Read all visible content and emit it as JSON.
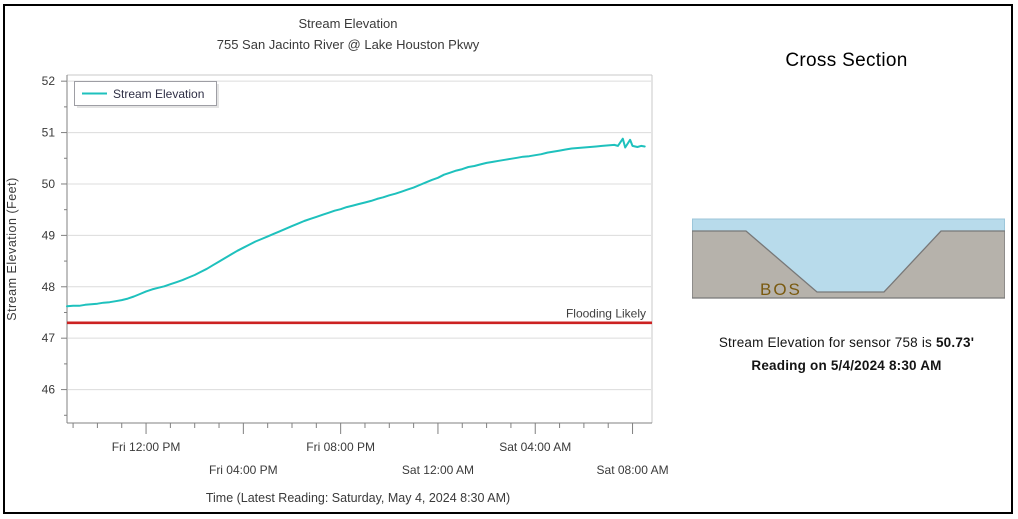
{
  "chart_data": {
    "type": "line",
    "title": "Stream Elevation",
    "subtitle": "755 San Jacinto River @ Lake Houston Pkwy",
    "xlabel": "Time (Latest Reading: Saturday, May 4, 2024 8:30 AM)",
    "ylabel": "Stream Elevation (Feet)",
    "ylim": [
      45.35,
      52.12
    ],
    "x_domain_hours": [
      8.75,
      32.8
    ],
    "y_major_ticks": [
      46,
      47,
      48,
      49,
      50,
      51,
      52
    ],
    "y_minor_step": 0.5,
    "x_minor_step_hours": 1,
    "x_major_ticks": [
      {
        "hour": 12,
        "label": "Fri 12:00 PM",
        "row": 1
      },
      {
        "hour": 16,
        "label": "Fri 04:00 PM",
        "row": 2
      },
      {
        "hour": 20,
        "label": "Fri 08:00 PM",
        "row": 1
      },
      {
        "hour": 24,
        "label": "Sat 12:00 AM",
        "row": 2
      },
      {
        "hour": 28,
        "label": "Sat 04:00 AM",
        "row": 1
      },
      {
        "hour": 32,
        "label": "Sat 08:00 AM",
        "row": 2
      }
    ],
    "grid": "horizontal",
    "legend": {
      "position": "top-left",
      "entries": [
        {
          "label": "Stream Elevation",
          "color": "#1ec1bd"
        }
      ]
    },
    "threshold": {
      "value": 47.3,
      "label": "Flooding Likely",
      "color": "#cc2222"
    },
    "series": [
      {
        "name": "Stream Elevation",
        "color": "#1ec1bd",
        "points": [
          [
            8.75,
            47.62
          ],
          [
            9.0,
            47.63
          ],
          [
            9.25,
            47.63
          ],
          [
            9.5,
            47.65
          ],
          [
            9.75,
            47.66
          ],
          [
            10.0,
            47.67
          ],
          [
            10.25,
            47.69
          ],
          [
            10.5,
            47.7
          ],
          [
            10.75,
            47.72
          ],
          [
            11.0,
            47.74
          ],
          [
            11.25,
            47.77
          ],
          [
            11.5,
            47.81
          ],
          [
            11.75,
            47.86
          ],
          [
            12.0,
            47.91
          ],
          [
            12.25,
            47.95
          ],
          [
            12.5,
            47.98
          ],
          [
            12.75,
            48.01
          ],
          [
            13.0,
            48.05
          ],
          [
            13.25,
            48.09
          ],
          [
            13.5,
            48.13
          ],
          [
            13.75,
            48.18
          ],
          [
            14.0,
            48.23
          ],
          [
            14.25,
            48.29
          ],
          [
            14.5,
            48.35
          ],
          [
            14.75,
            48.42
          ],
          [
            15.0,
            48.49
          ],
          [
            15.25,
            48.56
          ],
          [
            15.5,
            48.63
          ],
          [
            15.75,
            48.7
          ],
          [
            16.0,
            48.76
          ],
          [
            16.25,
            48.82
          ],
          [
            16.5,
            48.88
          ],
          [
            16.75,
            48.93
          ],
          [
            17.0,
            48.98
          ],
          [
            17.25,
            49.03
          ],
          [
            17.5,
            49.08
          ],
          [
            17.75,
            49.13
          ],
          [
            18.0,
            49.18
          ],
          [
            18.25,
            49.23
          ],
          [
            18.5,
            49.28
          ],
          [
            18.75,
            49.32
          ],
          [
            19.0,
            49.36
          ],
          [
            19.25,
            49.4
          ],
          [
            19.5,
            49.44
          ],
          [
            19.75,
            49.48
          ],
          [
            20.0,
            49.51
          ],
          [
            20.25,
            49.55
          ],
          [
            20.5,
            49.58
          ],
          [
            20.75,
            49.61
          ],
          [
            21.0,
            49.64
          ],
          [
            21.25,
            49.67
          ],
          [
            21.5,
            49.71
          ],
          [
            21.75,
            49.74
          ],
          [
            22.0,
            49.78
          ],
          [
            22.25,
            49.81
          ],
          [
            22.5,
            49.85
          ],
          [
            22.75,
            49.89
          ],
          [
            23.0,
            49.93
          ],
          [
            23.25,
            49.98
          ],
          [
            23.5,
            50.03
          ],
          [
            23.75,
            50.08
          ],
          [
            24.0,
            50.12
          ],
          [
            24.25,
            50.18
          ],
          [
            24.5,
            50.22
          ],
          [
            24.75,
            50.26
          ],
          [
            25.0,
            50.29
          ],
          [
            25.25,
            50.33
          ],
          [
            25.5,
            50.35
          ],
          [
            25.75,
            50.38
          ],
          [
            26.0,
            50.41
          ],
          [
            26.25,
            50.43
          ],
          [
            26.5,
            50.45
          ],
          [
            26.75,
            50.47
          ],
          [
            27.0,
            50.49
          ],
          [
            27.25,
            50.51
          ],
          [
            27.5,
            50.53
          ],
          [
            27.75,
            50.54
          ],
          [
            28.0,
            50.56
          ],
          [
            28.25,
            50.58
          ],
          [
            28.5,
            50.61
          ],
          [
            28.75,
            50.63
          ],
          [
            29.0,
            50.65
          ],
          [
            29.25,
            50.67
          ],
          [
            29.5,
            50.69
          ],
          [
            29.75,
            50.7
          ],
          [
            30.0,
            50.71
          ],
          [
            30.25,
            50.72
          ],
          [
            30.5,
            50.73
          ],
          [
            30.75,
            50.74
          ],
          [
            31.0,
            50.75
          ],
          [
            31.25,
            50.76
          ],
          [
            31.4,
            50.74
          ],
          [
            31.6,
            50.88
          ],
          [
            31.7,
            50.71
          ],
          [
            31.9,
            50.86
          ],
          [
            32.0,
            50.74
          ],
          [
            32.2,
            50.72
          ],
          [
            32.35,
            50.74
          ],
          [
            32.5,
            50.73
          ]
        ]
      }
    ]
  },
  "right": {
    "title": "Cross Section",
    "bos_label": "BOS",
    "reading": {
      "prefix": "Stream Elevation for sensor 758 is ",
      "value": "50.73'",
      "line2": "Reading on 5/4/2024 8:30 AM"
    }
  },
  "colors": {
    "series_teal": "#1ec1bd",
    "threshold_red": "#cc2222",
    "water_blue": "#b8dbeb",
    "ground_gray": "#b6b2ab",
    "ground_outline": "#787878",
    "bos_brown": "#7a5a10",
    "grid_gray": "#dcdcdc",
    "axis_gray": "#808080",
    "text_gray": "#3a3a3a"
  }
}
